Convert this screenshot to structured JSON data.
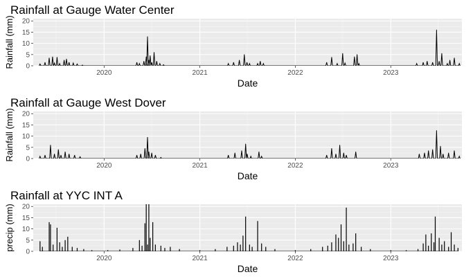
{
  "chart_data": [
    {
      "type": "line",
      "title": "Rainfall at Gauge Water Center",
      "xlabel": "Date",
      "ylabel": "Rainfall (mm)",
      "ylim": [
        0,
        21
      ],
      "yticks": [
        "0",
        "5",
        "10",
        "15",
        "20"
      ],
      "xticks": [
        "2020",
        "2021",
        "2022",
        "2023"
      ],
      "grid": true,
      "series": [
        {
          "x": [
            "2019-05-01",
            "2019-05-20",
            "2019-06-05",
            "2019-06-18",
            "2019-06-25",
            "2019-07-05",
            "2019-07-15",
            "2019-08-01",
            "2019-08-10",
            "2019-08-20",
            "2019-09-05",
            "2019-09-20",
            "2019-10-10",
            "2020-05-05",
            "2020-05-15",
            "2020-06-01",
            "2020-06-10",
            "2020-06-15",
            "2020-06-20",
            "2020-06-25",
            "2020-07-01",
            "2020-07-10",
            "2020-07-20",
            "2020-08-01",
            "2020-08-15",
            "2021-04-20",
            "2021-05-10",
            "2021-06-01",
            "2021-06-20",
            "2021-06-30",
            "2021-07-10",
            "2021-08-10",
            "2021-08-20",
            "2021-09-01",
            "2022-05-01",
            "2022-05-20",
            "2022-06-10",
            "2022-07-01",
            "2022-07-10",
            "2022-08-15",
            "2022-08-25",
            "2022-09-01",
            "2023-04-10",
            "2023-05-05",
            "2023-05-20",
            "2023-06-10",
            "2023-06-25",
            "2023-07-05",
            "2023-07-15",
            "2023-08-05",
            "2023-08-15",
            "2023-09-01",
            "2023-09-20"
          ],
          "y": [
            0.8,
            1.5,
            3.5,
            4.0,
            1.2,
            3.8,
            1.0,
            2.5,
            3.0,
            1.5,
            1.2,
            0.8,
            0.3,
            1.5,
            1.0,
            2.0,
            4.0,
            13.0,
            2.5,
            4.5,
            1.5,
            6.0,
            2.0,
            1.0,
            0.5,
            1.0,
            1.5,
            2.5,
            5.0,
            1.5,
            1.0,
            1.0,
            2.0,
            1.0,
            1.5,
            3.8,
            1.0,
            5.5,
            1.2,
            4.0,
            5.0,
            1.0,
            1.0,
            1.5,
            2.0,
            1.5,
            16.0,
            2.0,
            5.5,
            1.0,
            2.5,
            3.5,
            1.0
          ]
        }
      ]
    },
    {
      "type": "line",
      "title": "Rainfall at Gauge West Dover",
      "xlabel": "Date",
      "ylabel": "Rainfall (mm)",
      "ylim": [
        0,
        21
      ],
      "yticks": [
        "0",
        "5",
        "10",
        "15",
        "20"
      ],
      "xticks": [
        "2020",
        "2021",
        "2022",
        "2023"
      ],
      "grid": true,
      "series": [
        {
          "x": [
            "2019-05-01",
            "2019-05-20",
            "2019-06-10",
            "2019-06-25",
            "2019-07-10",
            "2019-07-20",
            "2019-08-05",
            "2019-08-20",
            "2019-09-10",
            "2019-10-01",
            "2020-05-05",
            "2020-05-20",
            "2020-06-05",
            "2020-06-15",
            "2020-06-20",
            "2020-07-01",
            "2020-07-15",
            "2020-08-05",
            "2021-04-20",
            "2021-05-15",
            "2021-06-10",
            "2021-06-25",
            "2021-07-01",
            "2021-07-15",
            "2021-08-15",
            "2021-08-25",
            "2022-05-01",
            "2022-05-20",
            "2022-06-05",
            "2022-06-20",
            "2022-07-05",
            "2022-07-15",
            "2022-08-20",
            "2023-04-20",
            "2023-05-10",
            "2023-05-25",
            "2023-06-10",
            "2023-06-25",
            "2023-07-10",
            "2023-07-20",
            "2023-08-10",
            "2023-09-01",
            "2023-09-20"
          ],
          "y": [
            1.0,
            1.5,
            6.0,
            2.0,
            4.0,
            1.5,
            3.0,
            2.0,
            1.5,
            0.8,
            1.5,
            2.0,
            4.5,
            9.5,
            3.0,
            2.5,
            1.5,
            0.5,
            1.5,
            2.5,
            3.5,
            6.5,
            2.0,
            1.0,
            3.0,
            1.0,
            1.5,
            4.5,
            2.0,
            6.0,
            2.5,
            1.5,
            3.0,
            2.0,
            2.5,
            3.5,
            4.0,
            12.5,
            5.5,
            2.0,
            2.5,
            3.5,
            1.0
          ]
        }
      ]
    },
    {
      "type": "bar",
      "title": "Rainfall at YYC INT A",
      "xlabel": "Date",
      "ylabel": "precip (mm)",
      "ylim": [
        0,
        21
      ],
      "yticks": [
        "0",
        "5",
        "10",
        "15",
        "20"
      ],
      "xticks": [
        "2020",
        "2021",
        "2022",
        "2023"
      ],
      "grid": true,
      "series": [
        {
          "x": [
            "2019-05-01",
            "2019-05-10",
            "2019-06-05",
            "2019-06-10",
            "2019-06-20",
            "2019-07-05",
            "2019-07-15",
            "2019-07-25",
            "2019-08-05",
            "2019-08-15",
            "2019-09-01",
            "2019-09-20",
            "2019-10-15",
            "2019-11-15",
            "2020-01-15",
            "2020-03-01",
            "2020-04-20",
            "2020-05-15",
            "2020-05-25",
            "2020-06-05",
            "2020-06-10",
            "2020-06-15",
            "2020-06-20",
            "2020-06-25",
            "2020-07-05",
            "2020-07-15",
            "2020-08-05",
            "2020-08-20",
            "2020-09-10",
            "2020-10-15",
            "2021-01-01",
            "2021-03-01",
            "2021-04-15",
            "2021-05-10",
            "2021-05-25",
            "2021-06-05",
            "2021-06-15",
            "2021-06-25",
            "2021-07-10",
            "2021-07-20",
            "2021-08-10",
            "2021-08-25",
            "2021-09-10",
            "2021-10-15",
            "2022-01-01",
            "2022-03-01",
            "2022-04-15",
            "2022-05-05",
            "2022-05-20",
            "2022-06-05",
            "2022-06-15",
            "2022-06-25",
            "2022-07-05",
            "2022-07-15",
            "2022-07-25",
            "2022-08-10",
            "2022-08-20",
            "2022-09-10",
            "2022-10-15",
            "2023-01-01",
            "2023-03-01",
            "2023-04-15",
            "2023-05-05",
            "2023-05-15",
            "2023-05-25",
            "2023-06-05",
            "2023-06-15",
            "2023-06-20",
            "2023-07-05",
            "2023-07-15",
            "2023-07-25",
            "2023-08-10",
            "2023-08-20",
            "2023-09-01",
            "2023-09-15"
          ],
          "y": [
            4.5,
            2.0,
            13.0,
            12.0,
            3.0,
            10.5,
            4.0,
            2.0,
            5.0,
            6.5,
            2.0,
            1.5,
            1.0,
            0.5,
            0.5,
            0.8,
            1.5,
            5.0,
            2.5,
            12.5,
            21.0,
            3.0,
            21.0,
            6.0,
            13.0,
            3.0,
            2.5,
            1.5,
            2.0,
            1.0,
            0.5,
            1.0,
            2.0,
            2.5,
            4.0,
            3.0,
            7.0,
            15.5,
            3.0,
            2.0,
            13.5,
            3.5,
            2.0,
            1.0,
            0.5,
            1.0,
            2.0,
            2.5,
            4.0,
            7.5,
            6.0,
            12.0,
            4.5,
            19.5,
            3.0,
            3.5,
            8.0,
            2.0,
            1.0,
            0.5,
            0.5,
            1.0,
            3.5,
            7.5,
            2.5,
            8.0,
            4.0,
            15.5,
            6.0,
            3.0,
            4.5,
            2.0,
            8.5,
            3.0,
            1.5
          ]
        }
      ]
    }
  ]
}
